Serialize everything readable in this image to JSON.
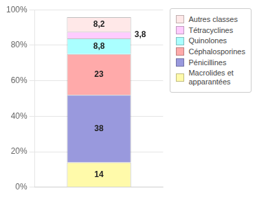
{
  "chart_data": {
    "type": "bar",
    "stacked": true,
    "categories": [
      null
    ],
    "series": [
      {
        "name": "Macrolides et\napparantées",
        "color": "#FFFAAA",
        "values": [
          14
        ]
      },
      {
        "name": "Pénicillines",
        "color": "#9999DD",
        "values": [
          38
        ]
      },
      {
        "name": "Céphalosporines",
        "color": "#FFAAAA",
        "values": [
          23
        ]
      },
      {
        "name": "Quinolones",
        "color": "#AAFFFF",
        "values": [
          8.8
        ],
        "value_labels": [
          "8,8"
        ]
      },
      {
        "name": "Tétracyclines",
        "color": "#FFCCFF",
        "values": [
          3.8
        ],
        "value_labels": [
          "3,8"
        ]
      },
      {
        "name": "Autres classes",
        "color": "#FFE8E8",
        "values": [
          8.2
        ],
        "value_labels": [
          "8,2"
        ]
      }
    ],
    "ylim": [
      0,
      100
    ],
    "yticks": [
      {
        "value": 0,
        "label": "0%"
      },
      {
        "value": 20,
        "label": "20%"
      },
      {
        "value": 40,
        "label": "40%"
      },
      {
        "value": 60,
        "label": "60%"
      },
      {
        "value": 80,
        "label": "80%"
      },
      {
        "value": 100,
        "label": "100%"
      }
    ],
    "grid": true,
    "legend": "right",
    "data_labels": true,
    "tick_labels": "y"
  }
}
